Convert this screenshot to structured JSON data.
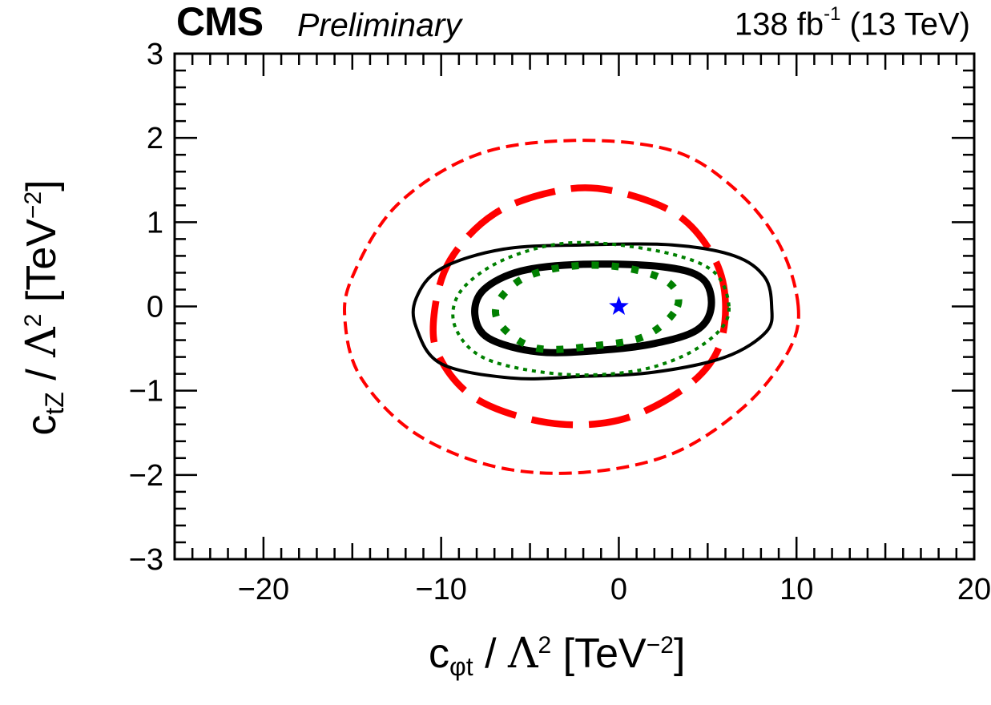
{
  "header": {
    "experiment": "CMS",
    "status": "Preliminary",
    "lumi_value": "138 fb",
    "lumi_exp": "-1",
    "energy": "(13 TeV)"
  },
  "axes": {
    "x": {
      "var_main": "c",
      "var_sub": "φt",
      "sep": " / ",
      "lambda": "Λ",
      "lambda_exp": "2",
      "unit_open": " [TeV",
      "unit_exp": "−2",
      "unit_close": "]"
    },
    "y": {
      "var_main": "c",
      "var_sub": "tZ",
      "sep": " / ",
      "lambda": "Λ",
      "lambda_exp": "2",
      "unit_open": " [TeV",
      "unit_exp": "−2",
      "unit_close": "]"
    }
  },
  "chart_data": {
    "type": "contour",
    "xlabel": "c_φt / Λ^2 [TeV^-2]",
    "ylabel": "c_tZ / Λ^2 [TeV^-2]",
    "xlim": [
      -25,
      20
    ],
    "ylim": [
      -3,
      3
    ],
    "x_ticks": [
      -20,
      -10,
      0,
      10,
      20
    ],
    "x_tick_labels": [
      "−20",
      "−10",
      "0",
      "10",
      "20"
    ],
    "y_ticks": [
      -3,
      -2,
      -1,
      0,
      1,
      2,
      3
    ],
    "y_tick_labels": [
      "−3",
      "−2",
      "−1",
      "0",
      "1",
      "2",
      "3"
    ],
    "best_fit": {
      "x": 0,
      "y": 0,
      "color": "#0000ff",
      "marker": "star"
    },
    "series": [
      {
        "name": "red-dashed-outer",
        "color": "#ff0000",
        "style": "dashed",
        "weight": "thin",
        "points": [
          [
            10.1,
            0.0
          ],
          [
            9.0,
            0.75
          ],
          [
            6.5,
            1.4
          ],
          [
            3.0,
            1.85
          ],
          [
            -2.5,
            1.97
          ],
          [
            -8.0,
            1.8
          ],
          [
            -12.5,
            1.2
          ],
          [
            -15.0,
            0.35
          ],
          [
            -15.4,
            -0.2
          ],
          [
            -14.5,
            -0.85
          ],
          [
            -11.5,
            -1.5
          ],
          [
            -7.0,
            -1.9
          ],
          [
            -2.0,
            -1.97
          ],
          [
            3.0,
            -1.75
          ],
          [
            7.0,
            -1.2
          ],
          [
            9.5,
            -0.55
          ]
        ]
      },
      {
        "name": "red-dashed-inner",
        "color": "#ff0000",
        "style": "dashed",
        "weight": "thick",
        "points": [
          [
            6.0,
            0.05
          ],
          [
            5.3,
            0.6
          ],
          [
            3.2,
            1.1
          ],
          [
            -0.5,
            1.38
          ],
          [
            -3.5,
            1.37
          ],
          [
            -7.0,
            1.1
          ],
          [
            -9.5,
            0.55
          ],
          [
            -10.4,
            -0.1
          ],
          [
            -10.1,
            -0.6
          ],
          [
            -8.0,
            -1.1
          ],
          [
            -4.0,
            -1.38
          ],
          [
            0.0,
            -1.35
          ],
          [
            3.5,
            -1.0
          ],
          [
            5.5,
            -0.55
          ]
        ]
      },
      {
        "name": "black-solid-outer",
        "color": "#000000",
        "style": "solid",
        "weight": "thin",
        "points": [
          [
            8.6,
            0.0
          ],
          [
            8.2,
            0.35
          ],
          [
            6.5,
            0.6
          ],
          [
            3.0,
            0.73
          ],
          [
            -2.0,
            0.73
          ],
          [
            -6.5,
            0.68
          ],
          [
            -10.0,
            0.45
          ],
          [
            -11.4,
            0.1
          ],
          [
            -11.4,
            -0.25
          ],
          [
            -10.0,
            -0.68
          ],
          [
            -6.0,
            -0.85
          ],
          [
            -2.0,
            -0.83
          ],
          [
            2.0,
            -0.78
          ],
          [
            6.0,
            -0.6
          ],
          [
            8.3,
            -0.3
          ]
        ]
      },
      {
        "name": "black-solid-inner",
        "color": "#000000",
        "style": "solid",
        "weight": "thick",
        "points": [
          [
            5.2,
            0.0
          ],
          [
            4.7,
            0.33
          ],
          [
            2.5,
            0.47
          ],
          [
            -2.0,
            0.5
          ],
          [
            -5.5,
            0.42
          ],
          [
            -7.6,
            0.2
          ],
          [
            -8.1,
            -0.1
          ],
          [
            -7.3,
            -0.38
          ],
          [
            -4.5,
            -0.54
          ],
          [
            -1.0,
            -0.52
          ],
          [
            2.0,
            -0.44
          ],
          [
            4.4,
            -0.28
          ]
        ]
      },
      {
        "name": "green-dotted-outer",
        "color": "#008000",
        "style": "dotted",
        "weight": "thin",
        "points": [
          [
            6.2,
            0.0
          ],
          [
            5.4,
            0.4
          ],
          [
            3.0,
            0.62
          ],
          [
            -1.0,
            0.75
          ],
          [
            -4.0,
            0.72
          ],
          [
            -7.0,
            0.5
          ],
          [
            -9.0,
            0.15
          ],
          [
            -9.2,
            -0.25
          ],
          [
            -7.5,
            -0.62
          ],
          [
            -3.5,
            -0.8
          ],
          [
            0.5,
            -0.78
          ],
          [
            3.5,
            -0.6
          ],
          [
            5.6,
            -0.3
          ]
        ]
      },
      {
        "name": "green-dotted-inner",
        "color": "#008000",
        "style": "dotted",
        "weight": "thick",
        "points": [
          [
            3.3,
            0.0
          ],
          [
            2.7,
            0.3
          ],
          [
            0.0,
            0.47
          ],
          [
            -3.0,
            0.47
          ],
          [
            -5.5,
            0.32
          ],
          [
            -6.9,
            0.0
          ],
          [
            -6.4,
            -0.28
          ],
          [
            -4.5,
            -0.5
          ],
          [
            -1.5,
            -0.47
          ],
          [
            1.5,
            -0.35
          ]
        ]
      }
    ]
  }
}
